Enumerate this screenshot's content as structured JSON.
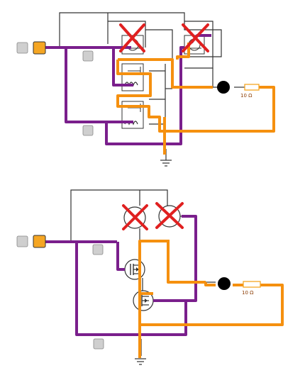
{
  "circuit_top": {
    "resistor_label": "10 Ω",
    "colors": {
      "wire_thin": "#333333",
      "wire_purple": "#7a1f8c",
      "wire_orange": "#f5900f",
      "switch_off": "#cfcfcf",
      "switch_on": "#f5a623",
      "cross": "#e02020",
      "led": "#000000",
      "resistor": "#f5a623"
    },
    "components": [
      "input-switch",
      "toggle-switch-1",
      "toggle-switch-2",
      "relay-1",
      "relay-2",
      "relay-coil-1",
      "relay-coil-2",
      "led",
      "resistor",
      "ground"
    ]
  },
  "circuit_bottom": {
    "resistor_label": "10 Ω",
    "components": [
      "input-switch",
      "toggle-switch-1",
      "toggle-switch-2",
      "bulb-1",
      "bulb-2",
      "mosfet-1",
      "mosfet-2",
      "led",
      "resistor",
      "ground"
    ]
  }
}
